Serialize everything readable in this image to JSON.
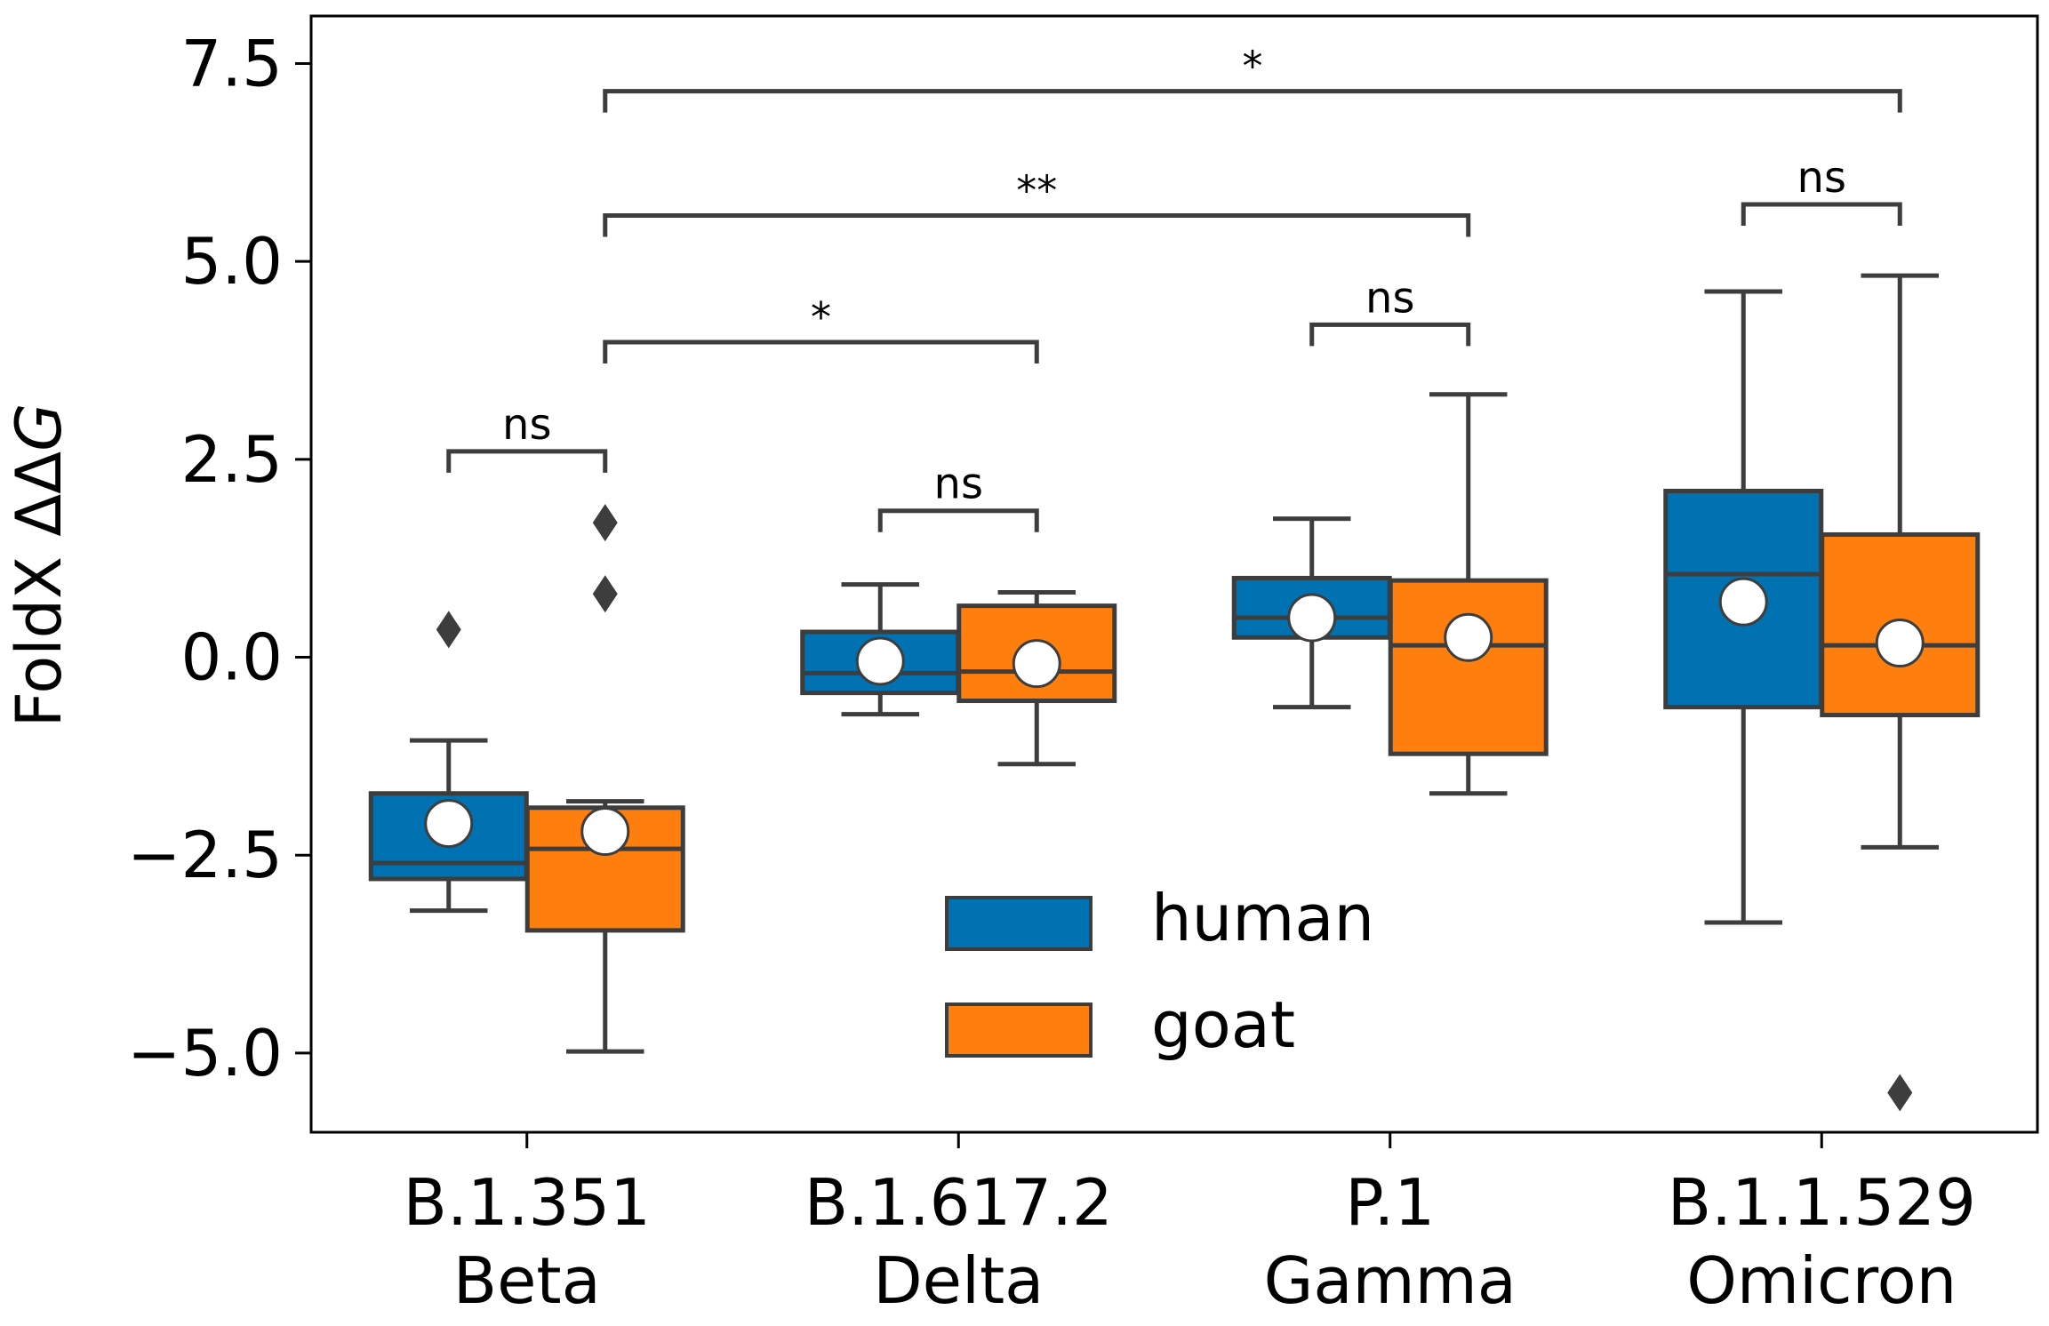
{
  "chart_data": {
    "type": "box",
    "ylabel": "FoldX ΔΔG",
    "ylabel_prefix": "FoldX ΔΔ",
    "ylabel_italic": "G",
    "ylim": [
      -6.0,
      8.1
    ],
    "yticks": [
      7.5,
      5.0,
      2.5,
      0.0,
      -2.5,
      -5.0
    ],
    "ytick_labels": [
      "7.5",
      "5.0",
      "2.5",
      "0.0",
      "−2.5",
      "−5.0"
    ],
    "categories": [
      {
        "line1": "B.1.351",
        "line2": "Beta"
      },
      {
        "line1": "B.1.617.2",
        "line2": "Delta"
      },
      {
        "line1": "P.1",
        "line2": "Gamma"
      },
      {
        "line1": "B.1.1.529",
        "line2": "Omicron"
      }
    ],
    "series": [
      {
        "name": "human",
        "color": "#0072b2",
        "boxes": [
          {
            "whislo": -3.2,
            "q1": -2.8,
            "med": -2.6,
            "q3": -1.72,
            "whishi": -1.05,
            "mean": -2.1,
            "fliers": [
              0.35
            ]
          },
          {
            "whislo": -0.72,
            "q1": -0.45,
            "med": -0.2,
            "q3": 0.32,
            "whishi": 0.92,
            "mean": -0.05,
            "fliers": []
          },
          {
            "whislo": -0.63,
            "q1": 0.25,
            "med": 0.5,
            "q3": 1.0,
            "whishi": 1.75,
            "mean": 0.5,
            "fliers": []
          },
          {
            "whislo": -3.35,
            "q1": -0.63,
            "med": 1.05,
            "q3": 2.1,
            "whishi": 4.62,
            "mean": 0.7,
            "fliers": []
          }
        ]
      },
      {
        "name": "goat",
        "color": "#ff7f0e",
        "boxes": [
          {
            "whislo": -4.98,
            "q1": -3.45,
            "med": -2.42,
            "q3": -1.9,
            "whishi": -1.82,
            "mean": -2.2,
            "fliers": [
              0.8,
              1.7
            ]
          },
          {
            "whislo": -1.35,
            "q1": -0.55,
            "med": -0.18,
            "q3": 0.65,
            "whishi": 0.82,
            "mean": -0.08,
            "fliers": []
          },
          {
            "whislo": -1.72,
            "q1": -1.22,
            "med": 0.15,
            "q3": 0.97,
            "whishi": 3.32,
            "mean": 0.25,
            "fliers": []
          },
          {
            "whislo": -2.4,
            "q1": -0.73,
            "med": 0.15,
            "q3": 1.55,
            "whishi": 4.82,
            "mean": 0.18,
            "fliers": [
              -5.5
            ]
          }
        ]
      }
    ],
    "annotations": [
      {
        "from": [
          0,
          0
        ],
        "to": [
          0,
          1
        ],
        "y": 2.6,
        "label": "ns"
      },
      {
        "from": [
          1,
          0
        ],
        "to": [
          1,
          1
        ],
        "y": 1.85,
        "label": "ns"
      },
      {
        "from": [
          2,
          0
        ],
        "to": [
          2,
          1
        ],
        "y": 4.2,
        "label": "ns"
      },
      {
        "from": [
          3,
          0
        ],
        "to": [
          3,
          1
        ],
        "y": 5.72,
        "label": "ns"
      },
      {
        "from": [
          0,
          1
        ],
        "to": [
          1,
          1
        ],
        "y": 3.98,
        "label": "*"
      },
      {
        "from": [
          0,
          1
        ],
        "to": [
          2,
          1
        ],
        "y": 5.58,
        "label": "**"
      },
      {
        "from": [
          0,
          1
        ],
        "to": [
          3,
          1
        ],
        "y": 7.15,
        "label": "*"
      }
    ],
    "legend": {
      "position": "lower-center",
      "entries": [
        "human",
        "goat"
      ]
    }
  }
}
